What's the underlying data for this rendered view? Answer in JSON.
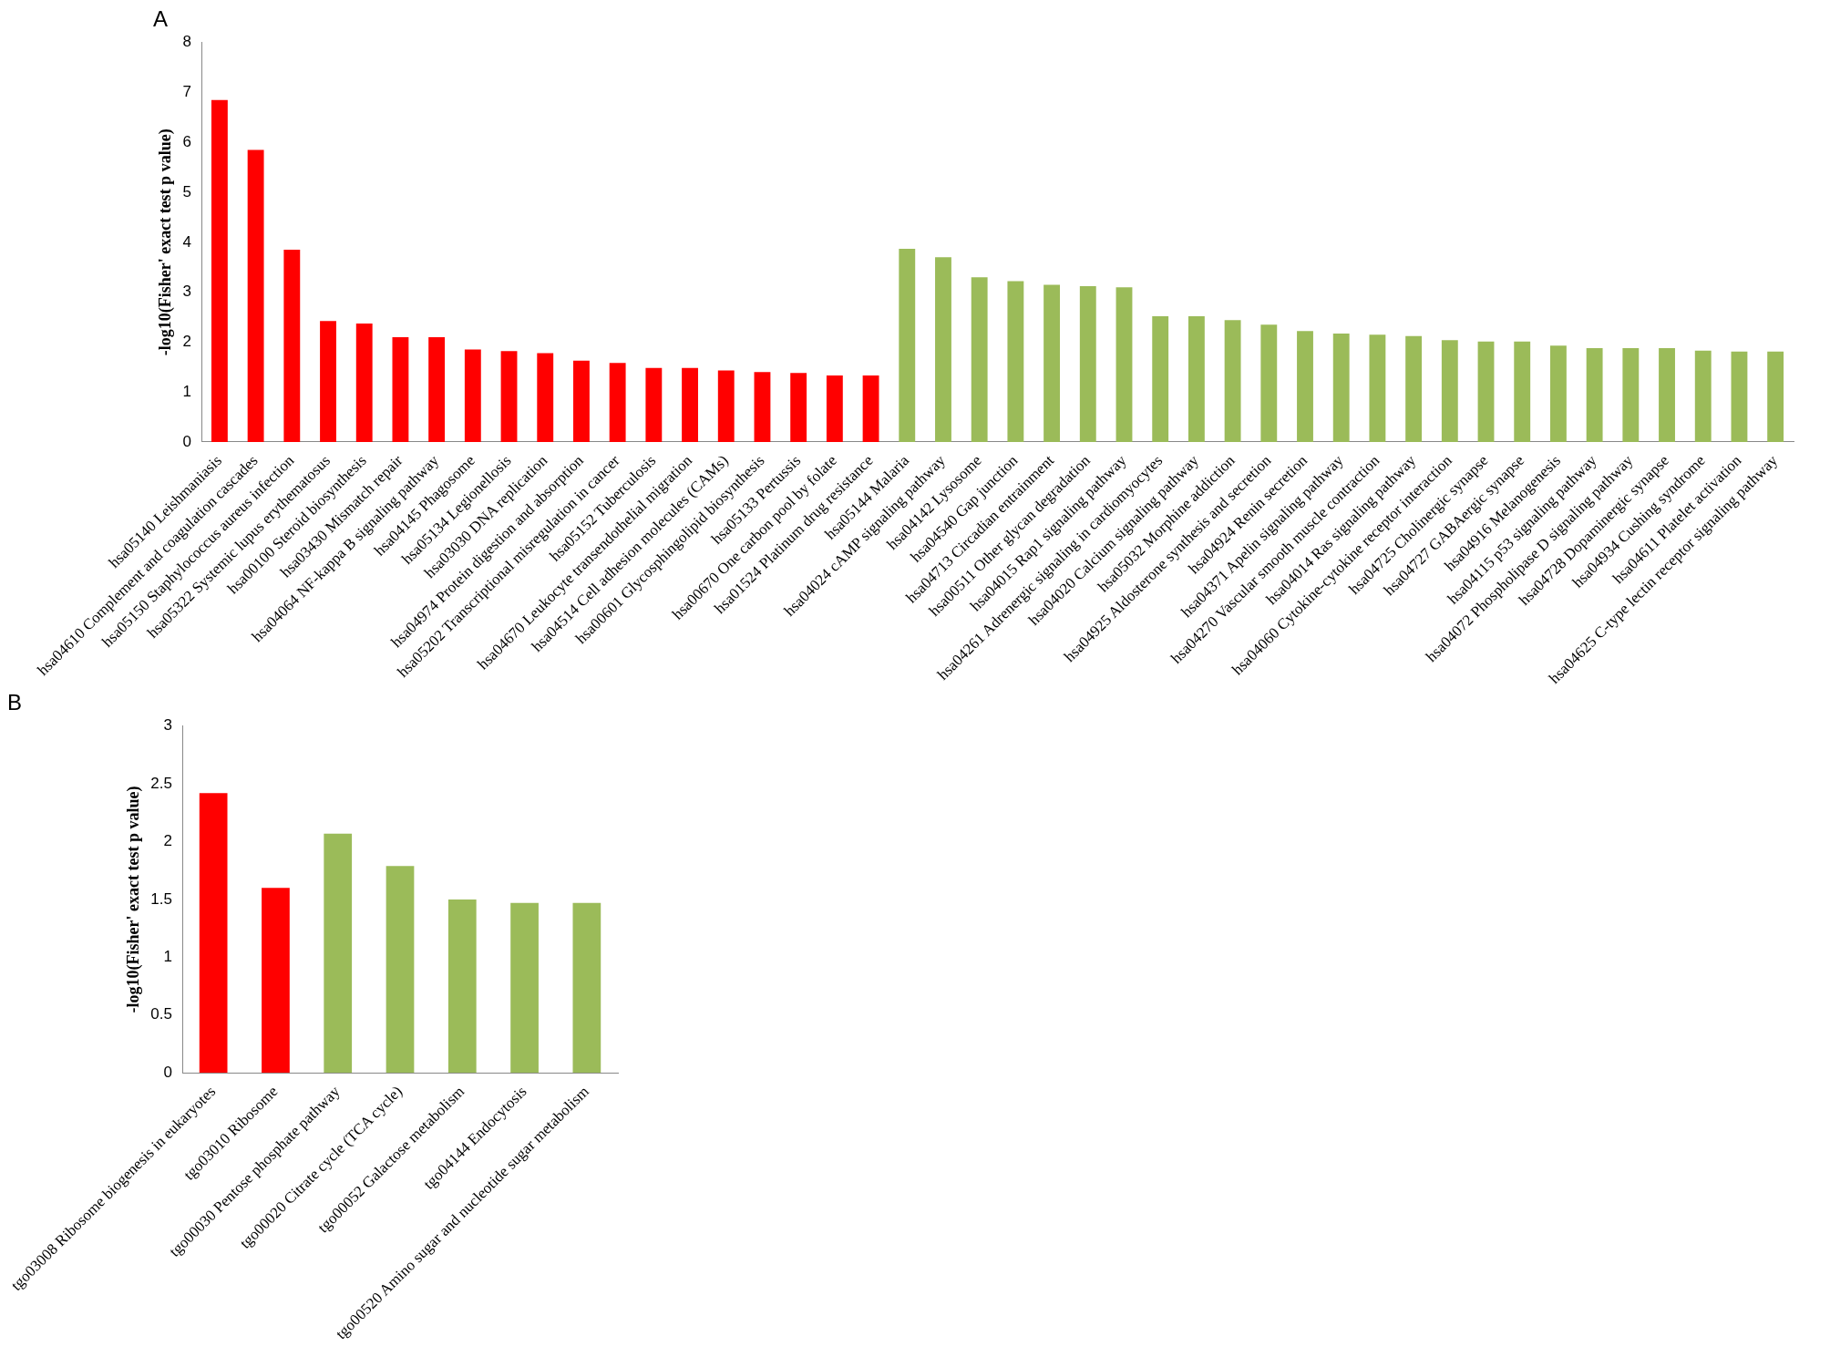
{
  "chart_data": [
    {
      "type": "bar",
      "title": "A",
      "ylabel": "-log10(Fisher' exact test p value)",
      "categories": [
        "hsa05140 Leishmaniasis",
        "hsa04610 Complement and coagulation cascades",
        "hsa05150 Staphylococcus aureus infection",
        "hsa05322 Systemic lupus erythematosus",
        "hsa00100 Steroid biosynthesis",
        "hsa03430 Mismatch repair",
        "hsa04064 NF-kappa B signaling pathway",
        "hsa04145 Phagosome",
        "hsa05134 Legionellosis",
        "hsa03030 DNA replication",
        "hsa04974 Protein digestion and absorption",
        "hsa05202 Transcriptional misregulation in cancer",
        "hsa05152 Tuberculosis",
        "hsa04670 Leukocyte transendothelial migration",
        "hsa04514 Cell adhesion molecules (CAMs)",
        "hsa00601 Glycosphingolipid biosynthesis",
        "hsa05133 Pertussis",
        "hsa00670 One carbon pool by folate",
        "hsa01524 Platinum drug resistance",
        "hsa05144 Malaria",
        "hsa04024 cAMP signaling pathway",
        "hsa04142 Lysosome",
        "hsa04540 Gap junction",
        "hsa04713 Circadian entrainment",
        "hsa00511 Other glycan degradation",
        "hsa04015 Rap1 signaling pathway",
        "hsa04261 Adrenergic signaling in cardiomyocytes",
        "hsa04020 Calcium signaling pathway",
        "hsa05032 Morphine addiction",
        "hsa04925 Aldosterone synthesis and secretion",
        "hsa04924 Renin secretion",
        "hsa04371 Apelin signaling pathway",
        "hsa04270 Vascular smooth muscle contraction",
        "hsa04014 Ras signaling pathway",
        "hsa04060 Cytokine-cytokine receptor interaction",
        "hsa04725 Cholinergic synapse",
        "hsa04727 GABAergic synapse",
        "hsa04916 Melanogenesis",
        "hsa04115 p53 signaling pathway",
        "hsa04072 Phospholipase D signaling pathway",
        "hsa04728 Dopaminergic synapse",
        "hsa04934 Cushing syndrome",
        "hsa04611 Platelet activation",
        "hsa04625 C-type lectin receptor signaling pathway"
      ],
      "values": [
        6.85,
        5.85,
        3.85,
        2.42,
        2.37,
        2.1,
        2.1,
        1.85,
        1.82,
        1.78,
        1.63,
        1.58,
        1.48,
        1.48,
        1.43,
        1.4,
        1.38,
        1.33,
        1.33,
        3.87,
        3.7,
        3.3,
        3.22,
        3.15,
        3.12,
        3.1,
        2.52,
        2.52,
        2.44,
        2.35,
        2.22,
        2.17,
        2.15,
        2.12,
        2.04,
        2.01,
        2.01,
        1.93,
        1.88,
        1.88,
        1.88,
        1.83,
        1.81,
        1.81
      ],
      "colors": [
        "#ff0000",
        "#ff0000",
        "#ff0000",
        "#ff0000",
        "#ff0000",
        "#ff0000",
        "#ff0000",
        "#ff0000",
        "#ff0000",
        "#ff0000",
        "#ff0000",
        "#ff0000",
        "#ff0000",
        "#ff0000",
        "#ff0000",
        "#ff0000",
        "#ff0000",
        "#ff0000",
        "#ff0000",
        "#9bbb59",
        "#9bbb59",
        "#9bbb59",
        "#9bbb59",
        "#9bbb59",
        "#9bbb59",
        "#9bbb59",
        "#9bbb59",
        "#9bbb59",
        "#9bbb59",
        "#9bbb59",
        "#9bbb59",
        "#9bbb59",
        "#9bbb59",
        "#9bbb59",
        "#9bbb59",
        "#9bbb59",
        "#9bbb59",
        "#9bbb59",
        "#9bbb59",
        "#9bbb59",
        "#9bbb59",
        "#9bbb59",
        "#9bbb59",
        "#9bbb59"
      ],
      "ylim": [
        0,
        8
      ],
      "yticks": [
        0,
        1,
        2,
        3,
        4,
        5,
        6,
        7,
        8
      ],
      "grid": false,
      "legend": false
    },
    {
      "type": "bar",
      "title": "B",
      "ylabel": "-log10(Fisher' exact test p value)",
      "categories": [
        "tgo03008 Ribosome biogenesis in eukaryotes",
        "tgo03010 Ribosome",
        "tgo00030 Pentose phosphate pathway",
        "tgo00020 Citrate cycle (TCA cycle)",
        "tgo00052 Galactose metabolism",
        "tgo04144 Endocytosis",
        "tgo00520 Amino sugar and nucleotide sugar metabolism"
      ],
      "values": [
        2.42,
        1.6,
        2.07,
        1.79,
        1.5,
        1.47,
        1.47
      ],
      "colors": [
        "#ff0000",
        "#ff0000",
        "#9bbb59",
        "#9bbb59",
        "#9bbb59",
        "#9bbb59",
        "#9bbb59"
      ],
      "ylim": [
        0,
        3
      ],
      "yticks": [
        0,
        0.5,
        1,
        1.5,
        2,
        2.5,
        3
      ],
      "grid": false,
      "legend": false
    }
  ]
}
